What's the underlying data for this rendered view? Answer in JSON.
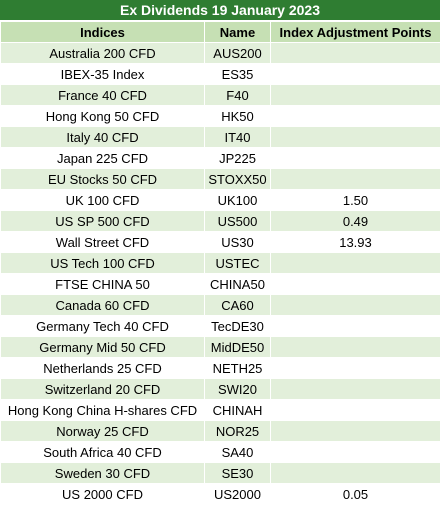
{
  "title": "Ex Dividends 19 January 2023",
  "columns": [
    "Indices",
    "Name",
    "Index Adjustment Points"
  ],
  "rows": [
    {
      "index": "Australia 200 CFD",
      "name": "AUS200",
      "points": ""
    },
    {
      "index": "IBEX-35 Index",
      "name": "ES35",
      "points": ""
    },
    {
      "index": "France 40 CFD",
      "name": "F40",
      "points": ""
    },
    {
      "index": "Hong Kong 50 CFD",
      "name": "HK50",
      "points": ""
    },
    {
      "index": "Italy 40 CFD",
      "name": "IT40",
      "points": ""
    },
    {
      "index": "Japan 225 CFD",
      "name": "JP225",
      "points": ""
    },
    {
      "index": "EU Stocks 50 CFD",
      "name": "STOXX50",
      "points": ""
    },
    {
      "index": "UK 100 CFD",
      "name": "UK100",
      "points": "1.50"
    },
    {
      "index": "US SP 500 CFD",
      "name": "US500",
      "points": "0.49"
    },
    {
      "index": "Wall Street CFD",
      "name": "US30",
      "points": "13.93"
    },
    {
      "index": "US Tech 100 CFD",
      "name": "USTEC",
      "points": ""
    },
    {
      "index": "FTSE CHINA 50",
      "name": "CHINA50",
      "points": ""
    },
    {
      "index": "Canada 60 CFD",
      "name": "CA60",
      "points": ""
    },
    {
      "index": "Germany Tech 40 CFD",
      "name": "TecDE30",
      "points": ""
    },
    {
      "index": "Germany Mid 50 CFD",
      "name": "MidDE50",
      "points": ""
    },
    {
      "index": "Netherlands 25 CFD",
      "name": "NETH25",
      "points": ""
    },
    {
      "index": "Switzerland 20 CFD",
      "name": "SWI20",
      "points": ""
    },
    {
      "index": "Hong Kong China H-shares CFD",
      "name": "CHINAH",
      "points": ""
    },
    {
      "index": "Norway 25 CFD",
      "name": "NOR25",
      "points": ""
    },
    {
      "index": "South Africa 40 CFD",
      "name": "SA40",
      "points": ""
    },
    {
      "index": "Sweden 30 CFD",
      "name": "SE30",
      "points": ""
    },
    {
      "index": "US 2000 CFD",
      "name": "US2000",
      "points": "0.05"
    }
  ]
}
